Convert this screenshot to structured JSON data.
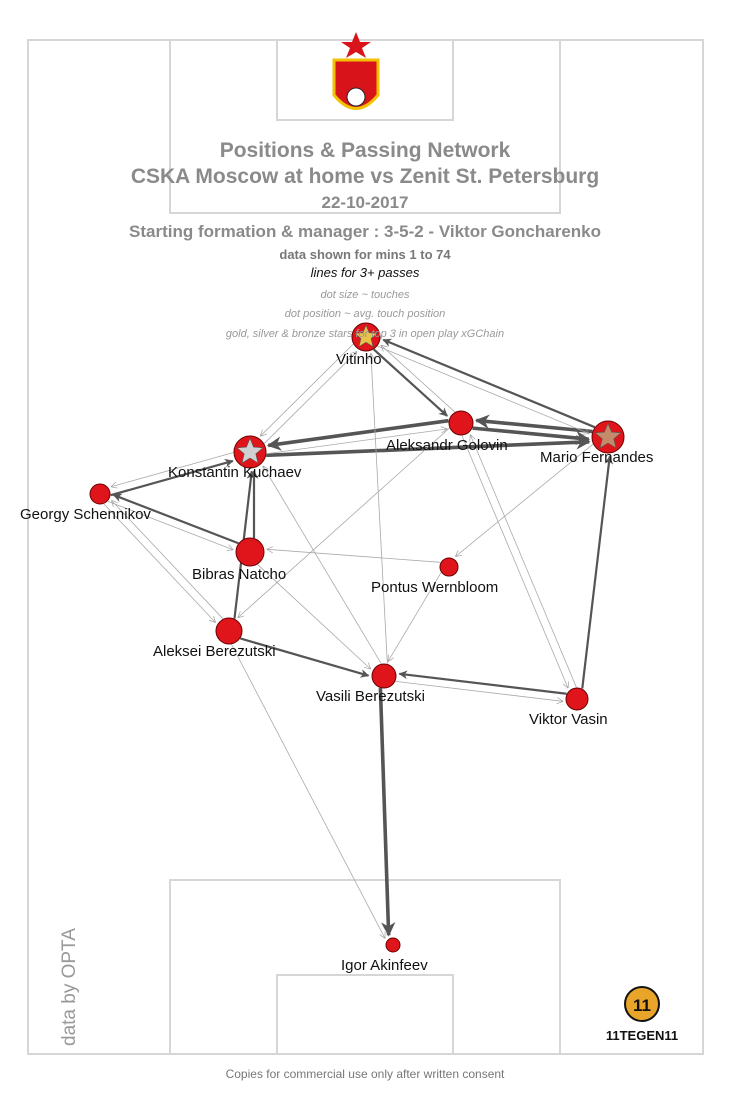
{
  "header": {
    "title": "Positions & Passing Network",
    "match": "CSKA Moscow at home vs Zenit St. Petersburg",
    "date": "22-10-2017",
    "formation": "Starting formation & manager : 3-5-2 - Viktor Goncharenko",
    "minutes": "data shown for mins 1 to 74",
    "lines_note": "lines for 3+ passes",
    "legend_size": "dot size ~ touches",
    "legend_position": "dot position ~ avg. touch position",
    "legend_stars": "gold, silver & bronze stars for top 3 in open play xGChain"
  },
  "footer": {
    "source": "data by OPTA",
    "consent": "Copies for commercial use only after written consent",
    "brand": "11TEGEN11"
  },
  "colors": {
    "dot": "#e0151b",
    "line": "#555555",
    "thin_line": "#aaaaaa",
    "gold": "#e8c34a",
    "silver": "#d0d0d0",
    "bronze": "#c58a6a"
  },
  "chart_data": {
    "type": "network",
    "players": [
      {
        "id": "vit",
        "name": "Vitinho",
        "touches": "large",
        "star": "gold"
      },
      {
        "id": "gol",
        "name": "Aleksandr Golovin",
        "touches": "medium",
        "star": ""
      },
      {
        "id": "fer",
        "name": "Mario Fernandes",
        "touches": "large",
        "star": "bronze"
      },
      {
        "id": "kuc",
        "name": "Konstantin Kuchaev",
        "touches": "large",
        "star": "silver"
      },
      {
        "id": "sch",
        "name": "Georgy Schennikov",
        "touches": "small",
        "star": ""
      },
      {
        "id": "nat",
        "name": "Bibras Natcho",
        "touches": "large",
        "star": ""
      },
      {
        "id": "wer",
        "name": "Pontus Wernbloom",
        "touches": "small",
        "star": ""
      },
      {
        "id": "abe",
        "name": "Aleksei Berezutski",
        "touches": "medium",
        "star": ""
      },
      {
        "id": "vbe",
        "name": "Vasili Berezutski",
        "touches": "medium",
        "star": ""
      },
      {
        "id": "vas",
        "name": "Viktor Vasin",
        "touches": "medium",
        "star": ""
      },
      {
        "id": "aki",
        "name": "Igor Akinfeev",
        "touches": "small",
        "star": ""
      }
    ],
    "passes": [
      {
        "from": "fer",
        "to": "gol",
        "weight": "thick"
      },
      {
        "from": "gol",
        "to": "fer",
        "weight": "thick"
      },
      {
        "from": "kuc",
        "to": "fer",
        "weight": "thick"
      },
      {
        "from": "gol",
        "to": "kuc",
        "weight": "thick"
      },
      {
        "from": "vbe",
        "to": "aki",
        "weight": "thick"
      },
      {
        "from": "vit",
        "to": "gol",
        "weight": "medium"
      },
      {
        "from": "fer",
        "to": "vit",
        "weight": "medium"
      },
      {
        "from": "nat",
        "to": "kuc",
        "weight": "medium"
      },
      {
        "from": "abe",
        "to": "kuc",
        "weight": "medium"
      },
      {
        "from": "abe",
        "to": "vbe",
        "weight": "medium"
      },
      {
        "from": "vas",
        "to": "vbe",
        "weight": "medium"
      },
      {
        "from": "vas",
        "to": "fer",
        "weight": "medium"
      },
      {
        "from": "sch",
        "to": "kuc",
        "weight": "medium"
      },
      {
        "from": "nat",
        "to": "sch",
        "weight": "medium"
      },
      {
        "from": "kuc",
        "to": "vit",
        "weight": "thin"
      },
      {
        "from": "vit",
        "to": "kuc",
        "weight": "thin"
      },
      {
        "from": "sch",
        "to": "nat",
        "weight": "thin"
      },
      {
        "from": "kuc",
        "to": "sch",
        "weight": "thin"
      },
      {
        "from": "sch",
        "to": "abe",
        "weight": "thin"
      },
      {
        "from": "abe",
        "to": "sch",
        "weight": "thin"
      },
      {
        "from": "wer",
        "to": "vbe",
        "weight": "thin"
      },
      {
        "from": "vbe",
        "to": "vas",
        "weight": "thin"
      },
      {
        "from": "gol",
        "to": "vas",
        "weight": "thin"
      },
      {
        "from": "fer",
        "to": "wer",
        "weight": "thin"
      },
      {
        "from": "vbe",
        "to": "kuc",
        "weight": "thin"
      },
      {
        "from": "vbe",
        "to": "vit",
        "weight": "thin"
      },
      {
        "from": "vas",
        "to": "gol",
        "weight": "thin"
      },
      {
        "from": "abe",
        "to": "aki",
        "weight": "thin"
      },
      {
        "from": "gol",
        "to": "abe",
        "weight": "thin"
      },
      {
        "from": "wer",
        "to": "nat",
        "weight": "thin"
      },
      {
        "from": "vit",
        "to": "fer",
        "weight": "thin"
      },
      {
        "from": "gol",
        "to": "vit",
        "weight": "thin"
      },
      {
        "from": "nat",
        "to": "vbe",
        "weight": "thin"
      },
      {
        "from": "kuc",
        "to": "gol",
        "weight": "thin"
      }
    ]
  }
}
